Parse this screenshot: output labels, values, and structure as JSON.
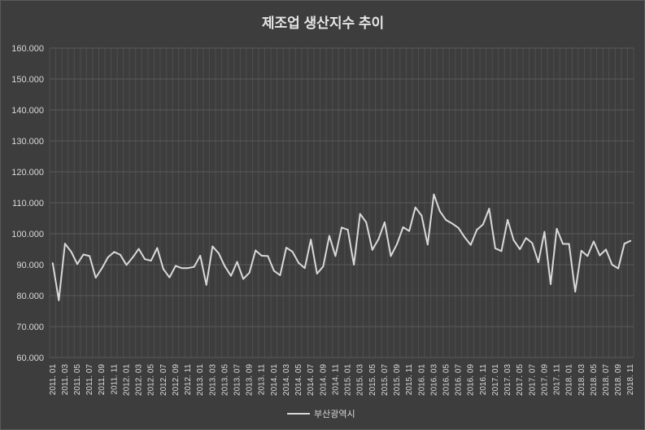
{
  "chart_data": {
    "type": "line",
    "title": "제조업 생산지수 추이",
    "xlabel": "",
    "ylabel": "",
    "ylim": [
      60,
      160
    ],
    "y_ticks": [
      "60.000",
      "70.000",
      "80.000",
      "90.000",
      "100.000",
      "110.000",
      "120.000",
      "130.000",
      "140.000",
      "150.000",
      "160.000"
    ],
    "x_tick_labels": [
      "2011. 01",
      "2011. 03",
      "2011. 05",
      "2011. 07",
      "2011. 09",
      "2011. 11",
      "2012. 01",
      "2012. 03",
      "2012. 05",
      "2012. 07",
      "2012. 09",
      "2012. 11",
      "2013. 01",
      "2013. 03",
      "2013. 05",
      "2013. 07",
      "2013. 09",
      "2013. 11",
      "2014. 01",
      "2014. 03",
      "2014. 05",
      "2014. 07",
      "2014. 09",
      "2014. 11",
      "2015. 01",
      "2015. 03",
      "2015. 05",
      "2015. 07",
      "2015. 09",
      "2015. 11",
      "2016. 01",
      "2016. 03",
      "2016. 05",
      "2016. 07",
      "2016. 09",
      "2016. 11",
      "2017. 01",
      "2017. 03",
      "2017. 05",
      "2017. 07",
      "2017. 09",
      "2017. 11",
      "2018. 01",
      "2018. 03",
      "2018. 05",
      "2018. 07",
      "2018. 09",
      "2018. 11"
    ],
    "grid": true,
    "legend_position": "bottom",
    "series": [
      {
        "name": "부산광역시",
        "color": "#d9d9d9",
        "values": [
          90.5,
          78.5,
          96.8,
          94.2,
          90.2,
          93.3,
          92.8,
          85.8,
          88.8,
          92.4,
          94.1,
          93.2,
          89.9,
          92.3,
          95.1,
          91.8,
          91.3,
          95.4,
          88.6,
          85.9,
          89.6,
          88.9,
          88.9,
          89.3,
          92.9,
          83.5,
          95.9,
          93.7,
          89.5,
          86.4,
          90.9,
          85.4,
          87.4,
          94.6,
          92.9,
          92.8,
          88.0,
          86.6,
          95.5,
          94.2,
          90.6,
          88.9,
          98.1,
          87.1,
          89.4,
          99.3,
          92.8,
          102.0,
          101.3,
          90.0,
          106.4,
          103.7,
          94.8,
          98.2,
          103.7,
          92.8,
          96.6,
          102.1,
          100.9,
          108.5,
          105.9,
          96.5,
          112.7,
          107.2,
          104.4,
          103.3,
          101.9,
          98.9,
          96.4,
          101.3,
          103.0,
          108.1,
          95.3,
          94.4,
          104.5,
          97.9,
          95.0,
          98.6,
          97.0,
          90.8,
          100.6,
          83.7,
          101.6,
          96.7,
          96.7,
          81.3,
          94.5,
          92.8,
          97.5,
          93.0,
          94.9,
          90.0,
          88.8,
          96.8,
          97.7
        ]
      }
    ]
  }
}
